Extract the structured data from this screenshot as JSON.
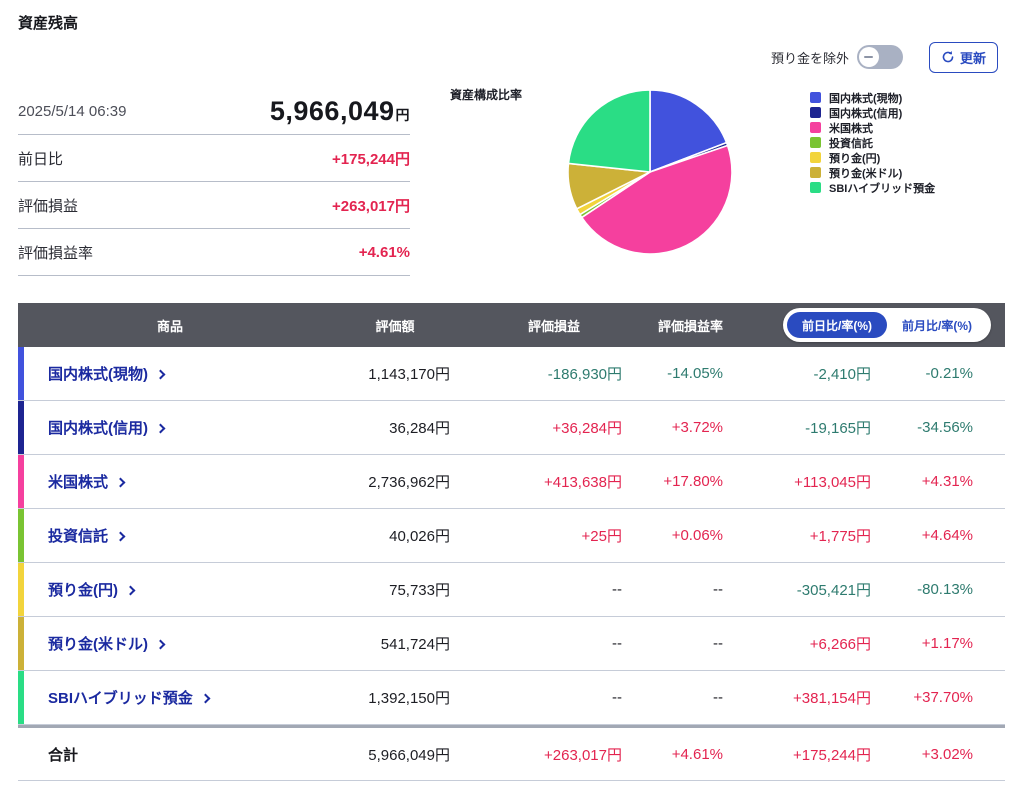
{
  "page": {
    "title": "資産残高"
  },
  "controls": {
    "toggle_label": "預り金を除外",
    "toggle_state": "off",
    "refresh_label": "更新"
  },
  "summary": {
    "timestamp": "2025/5/14 06:39",
    "total_value": "5,966,049",
    "currency_suffix": "円",
    "rows": [
      {
        "label": "前日比",
        "value": "+175,244円"
      },
      {
        "label": "評価損益",
        "value": "+263,017円"
      },
      {
        "label": "評価損益率",
        "value": "+4.61%"
      }
    ]
  },
  "chart_data": {
    "type": "pie",
    "title": "資産構成比率",
    "legend_position": "right",
    "total": 5966049,
    "items": [
      {
        "label": "国内株式(現物)",
        "value": 1143170,
        "percent": 19.16,
        "color": "#4152dd"
      },
      {
        "label": "国内株式(信用)",
        "value": 36284,
        "percent": 0.61,
        "color": "#1d2491"
      },
      {
        "label": "米国株式",
        "value": 2736962,
        "percent": 45.88,
        "color": "#f5409e"
      },
      {
        "label": "投資信託",
        "value": 40026,
        "percent": 0.67,
        "color": "#7ac432"
      },
      {
        "label": "預り金(円)",
        "value": 75733,
        "percent": 1.27,
        "color": "#f2d43c"
      },
      {
        "label": "預り金(米ドル)",
        "value": 541724,
        "percent": 9.08,
        "color": "#ccb138"
      },
      {
        "label": "SBIハイブリッド預金",
        "value": 1392150,
        "percent": 23.33,
        "color": "#2add85"
      }
    ]
  },
  "table": {
    "headers": {
      "product": "商品",
      "valuation": "評価額",
      "pl": "評価損益",
      "pl_rate": "評価損益率"
    },
    "period_toggle": {
      "selected": "前日比/率(%)",
      "unselected": "前月比/率(%)"
    },
    "rows": [
      {
        "label": "国内株式(現物)",
        "color": "#4152dd",
        "valuation": "1,143,170円",
        "pl": "-186,930円",
        "pl_rate": "-14.05%",
        "change": "-2,410円",
        "change_rate": "-0.21%"
      },
      {
        "label": "国内株式(信用)",
        "color": "#1d2491",
        "valuation": "36,284円",
        "pl": "+36,284円",
        "pl_rate": "+3.72%",
        "change": "-19,165円",
        "change_rate": "-34.56%"
      },
      {
        "label": "米国株式",
        "color": "#f5409e",
        "valuation": "2,736,962円",
        "pl": "+413,638円",
        "pl_rate": "+17.80%",
        "change": "+113,045円",
        "change_rate": "+4.31%"
      },
      {
        "label": "投資信託",
        "color": "#7ac432",
        "valuation": "40,026円",
        "pl": "+25円",
        "pl_rate": "+0.06%",
        "change": "+1,775円",
        "change_rate": "+4.64%"
      },
      {
        "label": "預り金(円)",
        "color": "#f2d43c",
        "valuation": "75,733円",
        "pl": "--",
        "pl_rate": "--",
        "change": "-305,421円",
        "change_rate": "-80.13%"
      },
      {
        "label": "預り金(米ドル)",
        "color": "#ccb138",
        "valuation": "541,724円",
        "pl": "--",
        "pl_rate": "--",
        "change": "+6,266円",
        "change_rate": "+1.17%"
      },
      {
        "label": "SBIハイブリッド預金",
        "color": "#2add85",
        "valuation": "1,392,150円",
        "pl": "--",
        "pl_rate": "--",
        "change": "+381,154円",
        "change_rate": "+37.70%"
      }
    ],
    "total": {
      "label": "合計",
      "valuation": "5,966,049円",
      "pl": "+263,017円",
      "pl_rate": "+4.61%",
      "change": "+175,244円",
      "change_rate": "+3.02%"
    }
  },
  "colors": {
    "accent_blue": "#2a4bc0",
    "positive_red": "#e32450",
    "negative_teal": "#2e7b6f",
    "header_gray": "#54565e",
    "link_navy": "#1b2aa0"
  }
}
